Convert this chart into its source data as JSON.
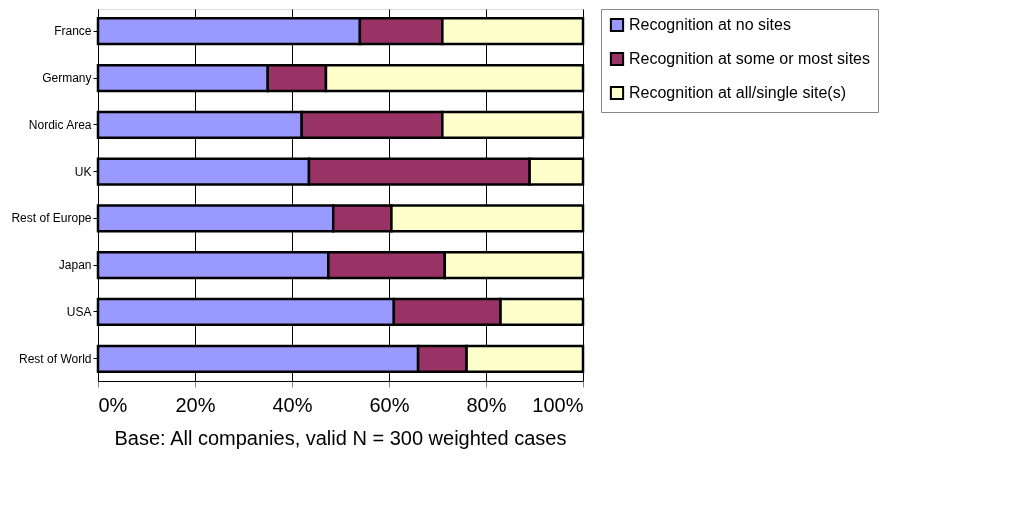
{
  "chart_data": {
    "type": "bar",
    "orientation": "horizontal",
    "stacked": true,
    "categories": [
      "France",
      "Germany",
      "Nordic Area",
      "UK",
      "Rest of Europe",
      "Japan",
      "USA",
      "Rest of World"
    ],
    "series": [
      {
        "name": "Recognition at no sites",
        "color": "#9999ff",
        "values": [
          54,
          35,
          42,
          43.5,
          48.5,
          47.5,
          61,
          66
        ]
      },
      {
        "name": "Recognition at some or most sites",
        "color": "#993366",
        "values": [
          17,
          12,
          29,
          45.5,
          12,
          24,
          22,
          10
        ]
      },
      {
        "name": "Recognition at all/single site(s)",
        "color": "#ffffcc",
        "values": [
          29,
          53,
          29,
          11,
          39.5,
          28.5,
          17,
          24
        ]
      }
    ],
    "xlim": [
      0,
      100
    ],
    "xticks": [
      {
        "value": 0,
        "label": "0%"
      },
      {
        "value": 20,
        "label": "20%"
      },
      {
        "value": 40,
        "label": "40%"
      },
      {
        "value": 60,
        "label": "60%"
      },
      {
        "value": 80,
        "label": "80%"
      },
      {
        "value": 100,
        "label": "100%"
      }
    ],
    "grid": "x",
    "legend": "right",
    "annotations": [
      "Base: All companies, valid N = 300 weighted cases"
    ]
  }
}
